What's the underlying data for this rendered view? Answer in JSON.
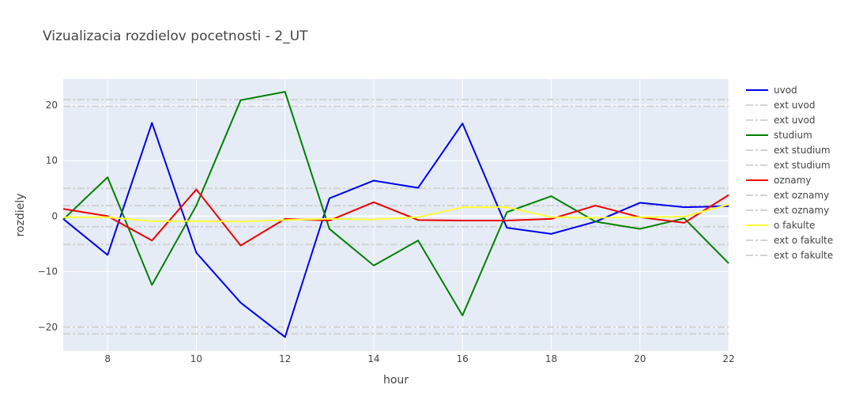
{
  "chart_data": {
    "type": "line",
    "title": "Vizualizacia rozdielov pocetnosti - 2_UT",
    "xlabel": "hour",
    "ylabel": "rozdiely",
    "xlim": [
      7,
      22
    ],
    "ylim": [
      -24.3,
      24.7
    ],
    "xticks": [
      8,
      10,
      12,
      14,
      16,
      18,
      20,
      22
    ],
    "yticks": [
      -20,
      -10,
      0,
      10,
      20
    ],
    "ytick_labels": [
      "−20",
      "−10",
      "0",
      "10",
      "20"
    ],
    "grid": true,
    "legend_position": "right",
    "x": [
      7,
      8,
      9,
      10,
      11,
      12,
      13,
      14,
      15,
      16,
      17,
      18,
      19,
      20,
      21,
      22
    ],
    "series": [
      {
        "name": "uvod",
        "color": "#0000ee",
        "dash": "solid",
        "values": [
          -0.5,
          -7.0,
          16.8,
          -6.6,
          -15.6,
          -21.8,
          3.2,
          6.4,
          5.1,
          16.7,
          -2.1,
          -3.2,
          -1.0,
          2.4,
          1.6,
          1.8
        ]
      },
      {
        "name": "ext uvod",
        "color": "#d3d3d3",
        "dash": "dashdot",
        "values": [
          19.8,
          19.8,
          19.8,
          19.8,
          19.8,
          19.8,
          19.8,
          19.8,
          19.8,
          19.8,
          19.8,
          19.8,
          19.8,
          19.8,
          19.8,
          19.8
        ]
      },
      {
        "name": "ext uvod",
        "color": "#d3d3d3",
        "dash": "dashdot",
        "values": [
          -20.0,
          -20.0,
          -20.0,
          -20.0,
          -20.0,
          -20.0,
          -20.0,
          -20.0,
          -20.0,
          -20.0,
          -20.0,
          -20.0,
          -20.0,
          -20.0,
          -20.0,
          -20.0
        ]
      },
      {
        "name": "studium",
        "color": "#008000",
        "dash": "solid",
        "values": [
          -0.6,
          7.0,
          -12.4,
          1.9,
          20.9,
          22.4,
          -2.3,
          -8.9,
          -4.4,
          -17.9,
          0.7,
          3.6,
          -1.0,
          -2.3,
          -0.4,
          -8.5
        ]
      },
      {
        "name": "ext studium",
        "color": "#d3d3d3",
        "dash": "dashdot",
        "values": [
          21.0,
          21.0,
          21.0,
          21.0,
          21.0,
          21.0,
          21.0,
          21.0,
          21.0,
          21.0,
          21.0,
          21.0,
          21.0,
          21.0,
          21.0,
          21.0
        ]
      },
      {
        "name": "ext studium",
        "color": "#d3d3d3",
        "dash": "dashdot",
        "values": [
          -21.2,
          -21.2,
          -21.2,
          -21.2,
          -21.2,
          -21.2,
          -21.2,
          -21.2,
          -21.2,
          -21.2,
          -21.2,
          -21.2,
          -21.2,
          -21.2,
          -21.2,
          -21.2
        ]
      },
      {
        "name": "oznamy",
        "color": "#ee0000",
        "dash": "solid",
        "values": [
          1.3,
          0.0,
          -4.4,
          4.8,
          -5.3,
          -0.5,
          -0.8,
          2.5,
          -0.7,
          -0.8,
          -0.8,
          -0.5,
          1.9,
          -0.2,
          -1.2,
          3.8
        ]
      },
      {
        "name": "ext oznamy",
        "color": "#d3d3d3",
        "dash": "dashdot",
        "values": [
          5.0,
          5.0,
          5.0,
          5.0,
          5.0,
          5.0,
          5.0,
          5.0,
          5.0,
          5.0,
          5.0,
          5.0,
          5.0,
          5.0,
          5.0,
          5.0
        ]
      },
      {
        "name": "ext oznamy",
        "color": "#d3d3d3",
        "dash": "dashdot",
        "values": [
          -5.1,
          -5.1,
          -5.1,
          -5.1,
          -5.1,
          -5.1,
          -5.1,
          -5.1,
          -5.1,
          -5.1,
          -5.1,
          -5.1,
          -5.1,
          -5.1,
          -5.1,
          -5.1
        ]
      },
      {
        "name": "o fakulte",
        "color": "#ffff33",
        "dash": "solid",
        "values": [
          -0.2,
          -0.2,
          -0.9,
          -0.9,
          -1.0,
          -0.7,
          -0.5,
          -0.6,
          -0.2,
          1.6,
          1.6,
          -0.2,
          -0.3,
          -0.2,
          -0.1,
          2.1
        ]
      },
      {
        "name": "ext o fakulte",
        "color": "#d3d3d3",
        "dash": "dashdot",
        "values": [
          1.9,
          1.9,
          1.9,
          1.9,
          1.9,
          1.9,
          1.9,
          1.9,
          1.9,
          1.9,
          1.9,
          1.9,
          1.9,
          1.9,
          1.9,
          1.9
        ]
      },
      {
        "name": "ext o fakulte",
        "color": "#d3d3d3",
        "dash": "dashdot",
        "values": [
          -1.9,
          -1.9,
          -1.9,
          -1.9,
          -1.9,
          -1.9,
          -1.9,
          -1.9,
          -1.9,
          -1.9,
          -1.9,
          -1.9,
          -1.9,
          -1.9,
          -1.9,
          -1.9
        ]
      }
    ]
  }
}
